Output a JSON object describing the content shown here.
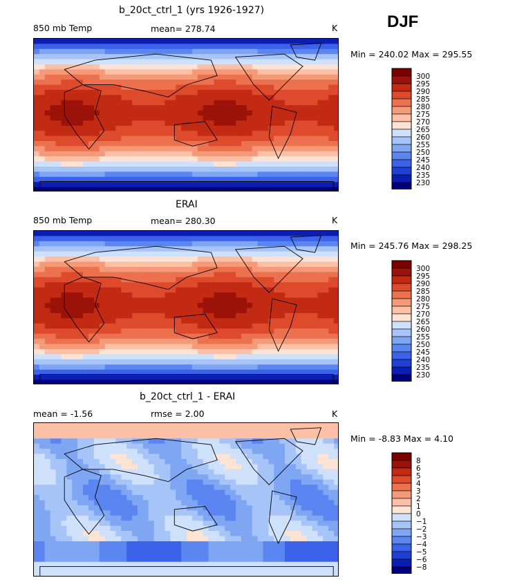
{
  "season": "DJF",
  "panels": [
    {
      "title": "b_20ct_ctrl_1 (yrs 1926-1927)",
      "left_label": "850 mb Temp",
      "center_label": "mean= 278.74",
      "right_label": "K",
      "minmax": "Min = 240.02 Max = 295.55",
      "kind": "abs"
    },
    {
      "title": "ERAI",
      "left_label": "850 mb Temp",
      "center_label": "mean= 280.30",
      "right_label": "K",
      "minmax": "Min = 245.76 Max = 298.25",
      "kind": "abs"
    },
    {
      "title": "b_20ct_ctrl_1 - ERAI",
      "left_label": "mean =   -1.56",
      "center_label": "rmse =    2.00",
      "right_label": "K",
      "minmax": "Min =  -8.83 Max =    4.10",
      "kind": "diff"
    }
  ],
  "chart_data": [
    {
      "type": "heatmap",
      "title": "b_20ct_ctrl_1 (yrs 1926-1927)",
      "variable": "850 mb Temp",
      "units": "K",
      "mean": 278.74,
      "min": 240.02,
      "max": 295.55,
      "colorbar_levels": [
        230,
        235,
        240,
        245,
        250,
        255,
        260,
        265,
        270,
        275,
        280,
        285,
        290,
        295,
        300
      ],
      "colors": [
        "#00007f",
        "#0a1fb2",
        "#1f3fd8",
        "#3b62e8",
        "#5b85f0",
        "#7fa6f3",
        "#a6c4f7",
        "#cfe0fa",
        "#fde3d4",
        "#fbc0a6",
        "#f59a78",
        "#ec714f",
        "#dd4a2c",
        "#c22a14",
        "#9c1208",
        "#7a0000"
      ]
    },
    {
      "type": "heatmap",
      "title": "ERAI",
      "variable": "850 mb Temp",
      "units": "K",
      "mean": 280.3,
      "min": 245.76,
      "max": 298.25,
      "colorbar_levels": [
        230,
        235,
        240,
        245,
        250,
        255,
        260,
        265,
        270,
        275,
        280,
        285,
        290,
        295,
        300
      ],
      "colors": [
        "#00007f",
        "#0a1fb2",
        "#1f3fd8",
        "#3b62e8",
        "#5b85f0",
        "#7fa6f3",
        "#a6c4f7",
        "#cfe0fa",
        "#fde3d4",
        "#fbc0a6",
        "#f59a78",
        "#ec714f",
        "#dd4a2c",
        "#c22a14",
        "#9c1208",
        "#7a0000"
      ]
    },
    {
      "type": "heatmap",
      "title": "b_20ct_ctrl_1 - ERAI",
      "units": "K",
      "mean": -1.56,
      "rmse": 2.0,
      "min": -8.83,
      "max": 4.1,
      "colorbar_levels": [
        -8,
        -6,
        -5,
        -4,
        -3,
        -2,
        -1,
        0,
        1,
        2,
        3,
        4,
        5,
        6,
        8
      ],
      "colorbar_labels": [
        "−8",
        "−6",
        "−5",
        "−4",
        "−3",
        "−2",
        "−1",
        "0",
        "1",
        "2",
        "3",
        "4",
        "5",
        "6",
        "8"
      ],
      "colors": [
        "#00007f",
        "#0a1fb2",
        "#1f3fd8",
        "#3b62e8",
        "#5b85f0",
        "#7fa6f3",
        "#a6c4f7",
        "#cfe0fa",
        "#fde3d4",
        "#fbc0a6",
        "#f59a78",
        "#ec714f",
        "#dd4a2c",
        "#c22a14",
        "#9c1208",
        "#7a0000"
      ]
    }
  ]
}
